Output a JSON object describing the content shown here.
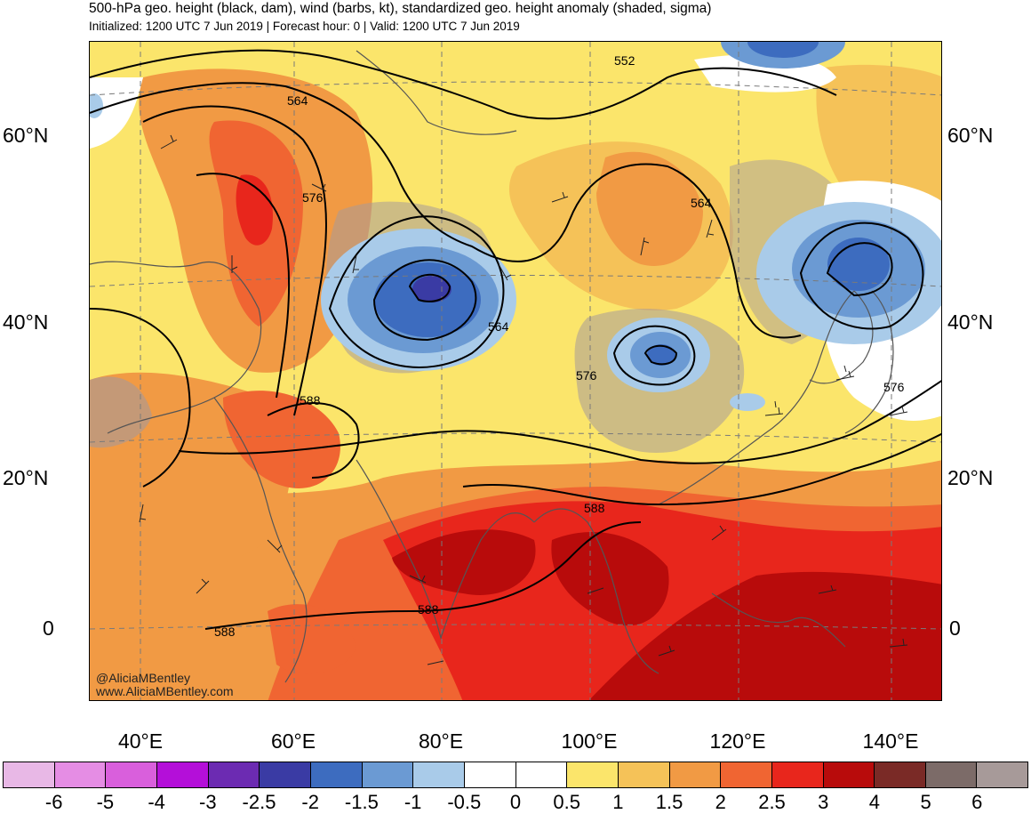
{
  "header": {
    "title": "500-hPa geo. height (black, dam), wind (barbs, kt), standardized geo. height anomaly (shaded, sigma)",
    "subtitle": "Initialized: 1200 UTC 7 Jun 2019 | Forecast hour: 0 | Valid: 1200 UTC 7 Jun 2019"
  },
  "map": {
    "projection": "conic",
    "lat_labels": [
      "60°N",
      "40°N",
      "20°N",
      "0"
    ],
    "lon_labels": [
      "40°E",
      "60°E",
      "80°E",
      "100°E",
      "120°E",
      "140°E"
    ],
    "contour_labels": [
      "552",
      "564",
      "564",
      "576",
      "564",
      "576",
      "588",
      "576",
      "588",
      "588",
      "588"
    ],
    "credit": [
      "@AliciaMBentley",
      "www.AliciaMBentley.com"
    ]
  },
  "colorbar": {
    "colors": [
      "#e8b8e6",
      "#e58de4",
      "#d95fdc",
      "#b40fd9",
      "#6c2bb2",
      "#3a3ba4",
      "#3d6cbf",
      "#6b9ad3",
      "#a9cbe9",
      "#ffffff",
      "#ffffff",
      "#fbe56b",
      "#f5c258",
      "#f19a44",
      "#f06532",
      "#e8261c",
      "#b80b0b",
      "#7a2a26",
      "#7c6b68",
      "#a79a99"
    ],
    "tick_labels": [
      "-6",
      "-5",
      "-4",
      "-3",
      "-2.5",
      "-2",
      "-1.5",
      "-1",
      "-0.5",
      "0",
      "0.5",
      "1",
      "1.5",
      "2",
      "2.5",
      "3",
      "4",
      "5",
      "6"
    ]
  }
}
